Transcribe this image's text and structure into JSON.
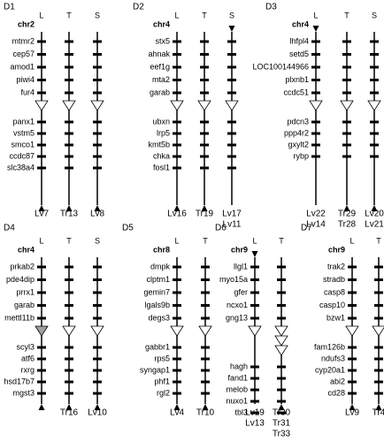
{
  "panels": [
    {
      "label": "D1",
      "chromosome": "chr2",
      "genes_top": [
        "mtmr2",
        "cep57",
        "amod1",
        "piwi4",
        "fur4"
      ],
      "genes_bottom": [
        "panx1",
        "vstm5",
        "smco1",
        "ccdc87",
        "slc38a4"
      ],
      "columns": [
        {
          "name": "L",
          "arrow": "down",
          "triangles": 1,
          "triangle_fill": "#ffffff",
          "ends": [
            "Lv7"
          ]
        },
        {
          "name": "T",
          "arrow": "down",
          "triangles": 1,
          "triangle_fill": "#ffffff",
          "ends": [
            "Tr13"
          ]
        },
        {
          "name": "S",
          "arrow": "down",
          "triangles": 1,
          "triangle_fill": "#ffffff",
          "ends": [
            "Lv8"
          ]
        }
      ]
    },
    {
      "label": "D2",
      "chromosome": "chr4",
      "genes_top": [
        "stx5",
        "ahnak",
        "eef1g",
        "mta2",
        "garab"
      ],
      "genes_bottom": [
        "ubxn",
        "lrp5",
        "kmt5b",
        "chka",
        "fosl1"
      ],
      "columns": [
        {
          "name": "L",
          "arrow": "down",
          "triangles": 1,
          "triangle_fill": "#ffffff",
          "ends": [
            "Lv16"
          ]
        },
        {
          "name": "T",
          "arrow": "down",
          "triangles": 1,
          "triangle_fill": "#ffffff",
          "ends": [
            "Tr19"
          ]
        },
        {
          "name": "S",
          "arrow": "up",
          "triangles": 1,
          "triangle_fill": "#ffffff",
          "ends": [
            "Lv17",
            "Lv11"
          ]
        }
      ]
    },
    {
      "label": "D3",
      "chromosome": "chr4",
      "genes_top": [
        "lhfpl4",
        "setd5",
        "LOC100144966",
        "plxnb1",
        "ccdc51"
      ],
      "genes_bottom": [
        "pdcn3",
        "ppp4r2",
        "gxylt2",
        "rybp"
      ],
      "columns": [
        {
          "name": "L",
          "arrow": "up",
          "triangles": 1,
          "triangle_fill": "#ffffff",
          "ends": [
            "Lv22",
            "Lv14"
          ]
        },
        {
          "name": "T",
          "arrow": "down",
          "triangles": 1,
          "triangle_fill": "#ffffff",
          "ends": [
            "Tr29",
            "Tr28"
          ]
        },
        {
          "name": "S",
          "arrow": "down",
          "triangles": 1,
          "triangle_fill": "#ffffff",
          "ends": [
            "Lv20",
            "Lv21"
          ]
        }
      ]
    },
    {
      "label": "D4",
      "chromosome": "chr4",
      "genes_top": [
        "prkab2",
        "pde4dip",
        "prrx1",
        "garab",
        "mettl11b"
      ],
      "genes_bottom": [
        "scyl3",
        "atf6",
        "rxrg",
        "hsd17b7",
        "mgst3"
      ],
      "columns": [
        {
          "name": "L",
          "arrow": "down",
          "triangles": 1,
          "triangle_fill": "#a0a0a0",
          "ends": []
        },
        {
          "name": "T",
          "arrow": "down",
          "triangles": 1,
          "triangle_fill": "#ffffff",
          "ends": [
            "Tr16"
          ]
        },
        {
          "name": "S",
          "arrow": "down",
          "triangles": 1,
          "triangle_fill": "#ffffff",
          "ends": [
            "Lv10"
          ]
        }
      ]
    },
    {
      "label": "D5",
      "chromosome": "chr8",
      "genes_top": [
        "dmpk",
        "clptm1",
        "gemin7",
        "lgals9b",
        "degs3"
      ],
      "genes_bottom": [
        "gabbr1",
        "rps5",
        "syngap1",
        "phf1",
        "rgl2"
      ],
      "columns": [
        {
          "name": "L",
          "arrow": "down",
          "triangles": 1,
          "triangle_fill": "#ffffff",
          "ends": [
            "Lv4"
          ]
        },
        {
          "name": "T",
          "arrow": "down",
          "triangles": 1,
          "triangle_fill": "#ffffff",
          "ends": [
            "Tr10"
          ]
        }
      ]
    },
    {
      "label": "D6",
      "chromosome": "chr9",
      "genes_top": [
        "llgl1",
        "myo15a",
        "gfer",
        "ncxo1",
        "gng13"
      ],
      "genes_bottom": [
        "hagh",
        "fand1",
        "melob",
        "nuxo1",
        "tbl3"
      ],
      "columns": [
        {
          "name": "L",
          "arrow": "up",
          "triangles": 1,
          "triangle_fill": "#ffffff",
          "ends": [
            "Lv19",
            "Lv13"
          ]
        },
        {
          "name": "T",
          "arrow": "down",
          "triangles": 3,
          "triangle_fill": "#ffffff",
          "ends": [
            "Tr30",
            "Tr31",
            "Tr33"
          ]
        }
      ]
    },
    {
      "label": "D7",
      "chromosome": "chr9",
      "genes_top": [
        "trak2",
        "stradb",
        "casp8",
        "casp10",
        "bzw1"
      ],
      "genes_bottom": [
        "fam126b",
        "ndufs3",
        "cyp20a1",
        "abi2",
        "cd28"
      ],
      "columns": [
        {
          "name": "L",
          "arrow": "down",
          "triangles": 1,
          "triangle_fill": "#ffffff",
          "ends": [
            "Lv9"
          ]
        },
        {
          "name": "T",
          "arrow": "down",
          "triangles": 1,
          "triangle_fill": "#ffffff",
          "ends": [
            "Tr4"
          ]
        }
      ]
    }
  ]
}
